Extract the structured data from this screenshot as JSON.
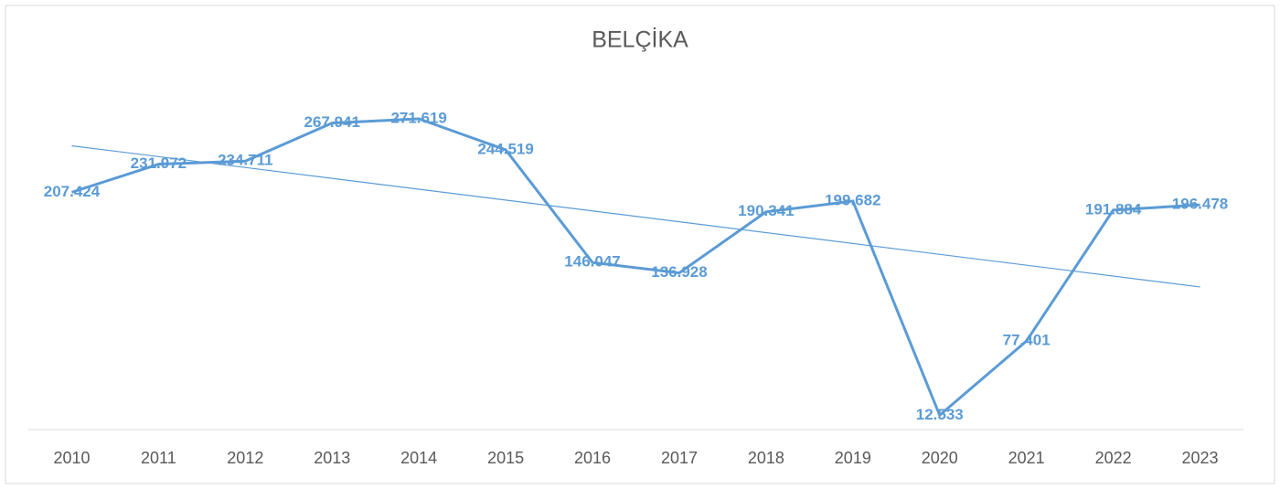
{
  "chart_data": {
    "type": "line",
    "title": "BELÇİKA",
    "categories": [
      "2010",
      "2011",
      "2012",
      "2013",
      "2014",
      "2015",
      "2016",
      "2017",
      "2018",
      "2019",
      "2020",
      "2021",
      "2022",
      "2023"
    ],
    "series": [
      {
        "name": "BELÇİKA",
        "color": "#5b9bd5",
        "values": [
          207424,
          231972,
          234711,
          267941,
          271619,
          244519,
          146047,
          136928,
          190341,
          199682,
          12533,
          77401,
          191884,
          196478
        ],
        "value_labels": [
          "207.424",
          "231.972",
          "234.711",
          "267.941",
          "271.619",
          "244.519",
          "146.047",
          "136.928",
          "190.341",
          "199.682",
          "12.533",
          "77.401",
          "191.884",
          "196.478"
        ]
      }
    ],
    "ylim": [
      0,
      300000
    ],
    "trendline": "linear",
    "grid": false
  }
}
